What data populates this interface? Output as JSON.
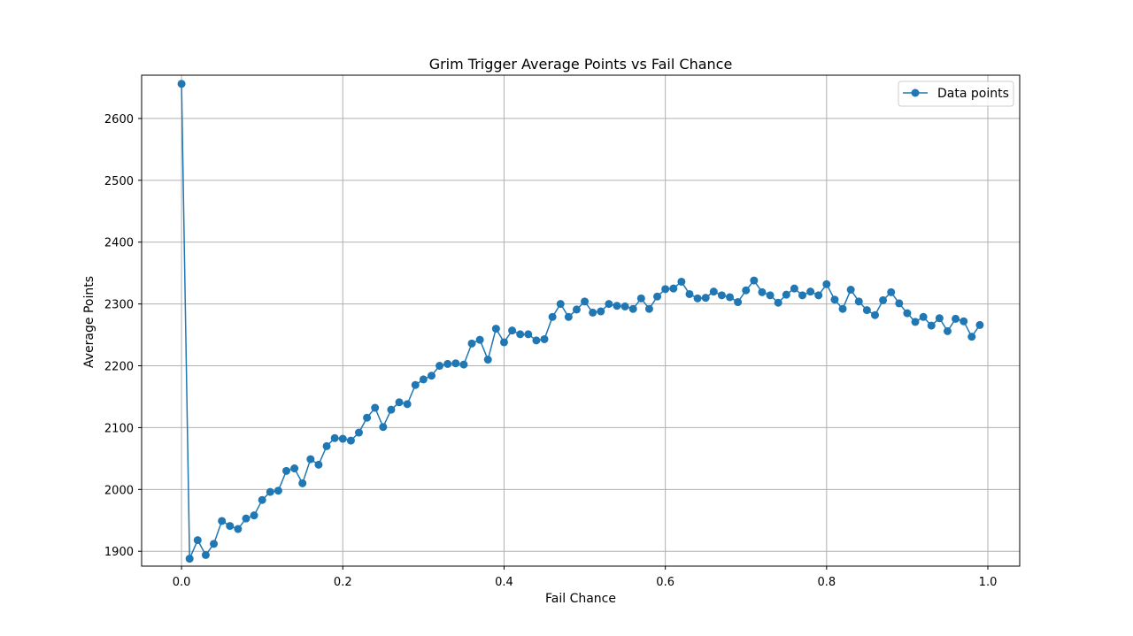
{
  "chart_data": {
    "type": "line",
    "title": "Grim Trigger Average Points vs Fail Chance",
    "xlabel": "Fail Chance",
    "ylabel": "Average Points",
    "xlim": [
      -0.0495,
      1.0395
    ],
    "ylim": [
      1876,
      2670
    ],
    "xticks": [
      "0.0",
      "0.2",
      "0.4",
      "0.6",
      "0.8",
      "1.0"
    ],
    "xtick_values": [
      0.0,
      0.2,
      0.4,
      0.6,
      0.8,
      1.0
    ],
    "yticks": [
      "1900",
      "2000",
      "2100",
      "2200",
      "2300",
      "2400",
      "2500",
      "2600"
    ],
    "ytick_values": [
      1900,
      2000,
      2100,
      2200,
      2300,
      2400,
      2500,
      2600
    ],
    "grid": true,
    "legend_position": "top-right",
    "color": "#1f77b4",
    "series": [
      {
        "name": "Data points",
        "marker": "circle",
        "x": [
          0.0,
          0.01,
          0.02,
          0.03,
          0.04,
          0.05,
          0.06,
          0.07,
          0.08,
          0.09,
          0.1,
          0.11,
          0.12,
          0.13,
          0.14,
          0.15,
          0.16,
          0.17,
          0.18,
          0.19,
          0.2,
          0.21,
          0.22,
          0.23,
          0.24,
          0.25,
          0.26,
          0.27,
          0.28,
          0.29,
          0.3,
          0.31,
          0.32,
          0.33,
          0.34,
          0.35,
          0.36,
          0.37,
          0.38,
          0.39,
          0.4,
          0.41,
          0.42,
          0.43,
          0.44,
          0.45,
          0.46,
          0.47,
          0.48,
          0.49,
          0.5,
          0.51,
          0.52,
          0.53,
          0.54,
          0.55,
          0.56,
          0.57,
          0.58,
          0.59,
          0.6,
          0.61,
          0.62,
          0.63,
          0.64,
          0.65,
          0.66,
          0.67,
          0.68,
          0.69,
          0.7,
          0.71,
          0.72,
          0.73,
          0.74,
          0.75,
          0.76,
          0.77,
          0.78,
          0.79,
          0.8,
          0.81,
          0.82,
          0.83,
          0.84,
          0.85,
          0.86,
          0.87,
          0.88,
          0.89,
          0.9,
          0.91,
          0.92,
          0.93,
          0.94,
          0.95,
          0.96,
          0.97,
          0.98,
          0.99
        ],
        "y": [
          2656,
          1888,
          1918,
          1894,
          1912,
          1949,
          1941,
          1936,
          1953,
          1958,
          1983,
          1996,
          1998,
          2030,
          2034,
          2010,
          2049,
          2040,
          2070,
          2083,
          2082,
          2079,
          2092,
          2116,
          2132,
          2101,
          2129,
          2141,
          2138,
          2169,
          2178,
          2184,
          2200,
          2203,
          2204,
          2202,
          2236,
          2242,
          2210,
          2260,
          2238,
          2257,
          2251,
          2251,
          2241,
          2243,
          2279,
          2300,
          2279,
          2291,
          2304,
          2286,
          2288,
          2300,
          2297,
          2296,
          2292,
          2309,
          2292,
          2312,
          2324,
          2325,
          2336,
          2316,
          2309,
          2310,
          2320,
          2314,
          2311,
          2303,
          2322,
          2338,
          2319,
          2314,
          2302,
          2315,
          2325,
          2314,
          2320,
          2314,
          2332,
          2307,
          2292,
          2323,
          2304,
          2290,
          2282,
          2306,
          2319,
          2301,
          2285,
          2271,
          2279,
          2265,
          2277,
          2256,
          2276,
          2272,
          2247,
          2266
        ]
      }
    ]
  }
}
